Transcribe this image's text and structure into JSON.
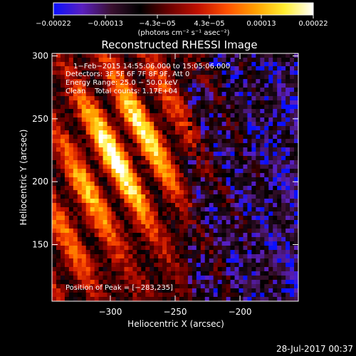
{
  "chart_data": {
    "type": "heatmap",
    "title": "Reconstructed RHESSI Image",
    "xlabel": "Heliocentric X (arcsec)",
    "ylabel": "Heliocentric Y (arcsec)",
    "xlim": [
      -345,
      -155
    ],
    "ylim": [
      105,
      302
    ],
    "x_ticks": [
      -300,
      -250,
      -200
    ],
    "x_tick_labels": [
      "−300",
      "−250",
      "−200"
    ],
    "y_ticks": [
      150,
      200,
      250,
      300
    ],
    "y_tick_labels": [
      "150",
      "200",
      "250",
      "300"
    ],
    "colorbar": {
      "range": [
        -0.00022,
        0.00022
      ],
      "ticks": [
        "−0.00022",
        "−0.00013",
        "−4.3e−05",
        "4.3e−05",
        "0.00013",
        "0.00022"
      ],
      "unit_label": "(photons cm⁻² s⁻¹ asec⁻²)",
      "colors": [
        "#0a10ff",
        "#5a1fbf",
        "#3a1030",
        "#000000",
        "#6a0000",
        "#c01000",
        "#ff5000",
        "#ffa000",
        "#ffee30",
        "#ffffff"
      ]
    },
    "annotations": [
      "1−Feb−2015 14:55:06.000 to 15:05:06.000",
      "Detectors: 3F 5F 6F 7F 8F 9F, Att 0",
      "Energy Range: 25.0 − 50.0 keV",
      "Clean    Total counts: 1.17E+04"
    ],
    "peak_label": "Position of Peak = [−283,235]",
    "peak": {
      "x": -283,
      "y": 235
    }
  },
  "footer": {
    "timestamp": "28-Jul-2017 00:37"
  }
}
